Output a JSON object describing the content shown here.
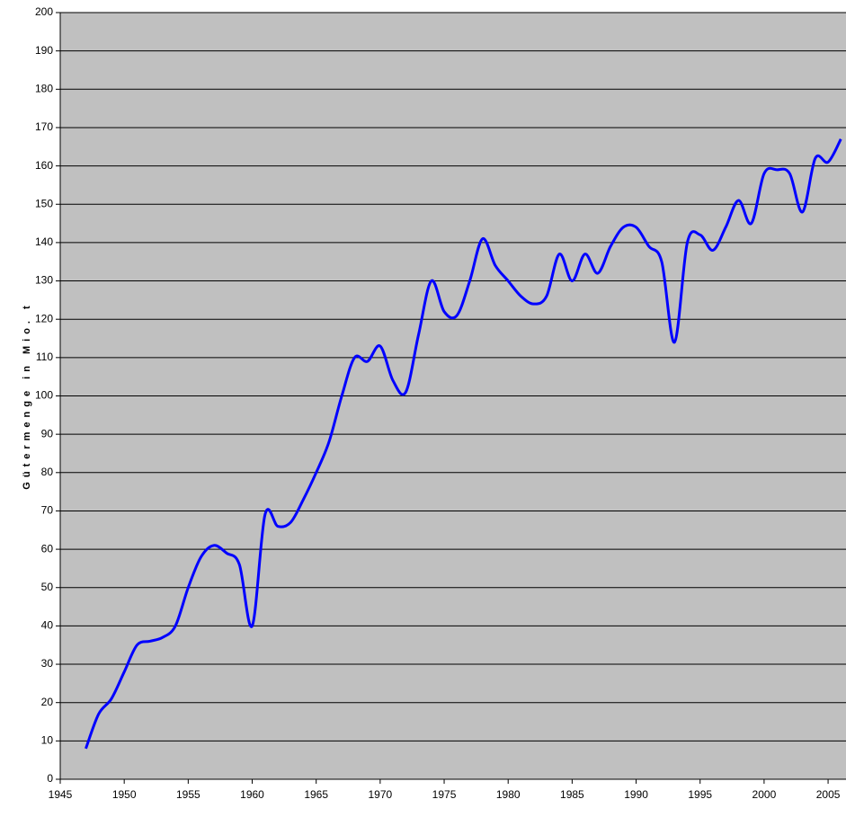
{
  "chart_data": {
    "type": "line",
    "y_label": "Gütermenge in Mio. t",
    "x": [
      1947,
      1948,
      1949,
      1950,
      1951,
      1952,
      1953,
      1954,
      1955,
      1956,
      1957,
      1958,
      1959,
      1960,
      1961,
      1962,
      1963,
      1964,
      1965,
      1966,
      1967,
      1968,
      1969,
      1970,
      1971,
      1972,
      1973,
      1974,
      1975,
      1976,
      1977,
      1978,
      1979,
      1980,
      1981,
      1982,
      1983,
      1984,
      1985,
      1986,
      1987,
      1988,
      1989,
      1990,
      1991,
      1992,
      1993,
      1994,
      1995,
      1996,
      1997,
      1998,
      1999,
      2000,
      2001,
      2002,
      2003,
      2004,
      2005,
      2006
    ],
    "series": [
      {
        "name": null,
        "color": "#0000ff",
        "values": [
          8,
          17,
          21,
          28,
          35,
          36,
          37,
          40,
          50,
          58,
          61,
          59,
          56,
          40,
          69,
          66,
          67,
          73,
          80,
          88,
          100,
          110,
          109,
          113,
          104,
          101,
          116,
          130,
          122,
          121,
          130,
          141,
          134,
          130,
          126,
          124,
          126,
          137,
          130,
          137,
          132,
          139,
          144,
          144,
          139,
          135,
          114,
          140,
          142,
          138,
          144,
          151,
          145,
          158,
          159,
          158,
          148,
          162,
          161,
          167
        ]
      }
    ],
    "xlim": [
      1945,
      2006.4
    ],
    "xticks": [
      1945,
      1950,
      1955,
      1960,
      1965,
      1970,
      1975,
      1980,
      1985,
      1990,
      1995,
      2000,
      2005
    ],
    "ylim": [
      0,
      200
    ],
    "yticks": [
      0,
      10,
      20,
      30,
      40,
      50,
      60,
      70,
      80,
      90,
      100,
      110,
      120,
      130,
      140,
      150,
      160,
      170,
      180,
      190,
      200
    ],
    "grid": true,
    "background": "#c0c0c0"
  }
}
